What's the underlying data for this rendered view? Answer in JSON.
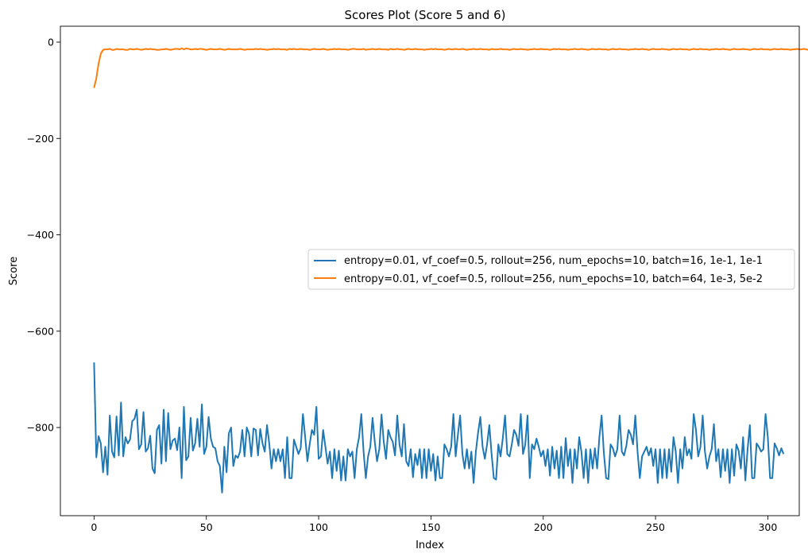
{
  "chart_data": {
    "type": "line",
    "title": "Scores Plot (Score 5 and 6)",
    "xlabel": "Index",
    "ylabel": "Score",
    "xlim": [
      -15,
      314
    ],
    "ylim": [
      -983,
      33
    ],
    "xticks": [
      0,
      50,
      100,
      150,
      200,
      250,
      300
    ],
    "yticks": [
      0,
      -200,
      -400,
      -600,
      -800
    ],
    "grid": false,
    "legend_position": "center-right",
    "series": [
      {
        "name": "entropy=0.01, vf_coef=0.5, rollout=256, num_epochs=10, batch=16, 1e-1, 1e-1",
        "color": "#1f77b4",
        "x_start": 0,
        "x_step": 1,
        "values": [
          -665,
          -862,
          -818,
          -833,
          -893,
          -840,
          -898,
          -775,
          -850,
          -862,
          -777,
          -858,
          -748,
          -860,
          -820,
          -833,
          -825,
          -787,
          -782,
          -763,
          -845,
          -835,
          -768,
          -850,
          -843,
          -817,
          -885,
          -895,
          -805,
          -795,
          -875,
          -763,
          -870,
          -770,
          -845,
          -827,
          -823,
          -847,
          -800,
          -905,
          -757,
          -868,
          -860,
          -780,
          -848,
          -833,
          -782,
          -840,
          -752,
          -855,
          -840,
          -778,
          -823,
          -840,
          -843,
          -870,
          -880,
          -935,
          -840,
          -893,
          -812,
          -800,
          -880,
          -858,
          -863,
          -850,
          -805,
          -860,
          -800,
          -813,
          -860,
          -802,
          -805,
          -858,
          -803,
          -833,
          -850,
          -795,
          -833,
          -885,
          -845,
          -870,
          -845,
          -870,
          -845,
          -905,
          -820,
          -905,
          -905,
          -825,
          -840,
          -855,
          -843,
          -772,
          -820,
          -870,
          -835,
          -805,
          -815,
          -757,
          -865,
          -860,
          -805,
          -840,
          -875,
          -850,
          -905,
          -845,
          -890,
          -848,
          -910,
          -860,
          -910,
          -845,
          -860,
          -850,
          -905,
          -845,
          -820,
          -772,
          -850,
          -905,
          -860,
          -840,
          -780,
          -830,
          -870,
          -845,
          -773,
          -830,
          -865,
          -805,
          -820,
          -830,
          -858,
          -775,
          -835,
          -860,
          -793,
          -870,
          -880,
          -845,
          -903,
          -855,
          -878,
          -845,
          -905,
          -845,
          -905,
          -845,
          -890,
          -855,
          -910,
          -860,
          -905,
          -905,
          -835,
          -845,
          -860,
          -840,
          -772,
          -860,
          -815,
          -775,
          -855,
          -885,
          -845,
          -885,
          -850,
          -915,
          -850,
          -810,
          -778,
          -840,
          -865,
          -835,
          -795,
          -855,
          -905,
          -908,
          -835,
          -860,
          -822,
          -775,
          -855,
          -860,
          -835,
          -805,
          -815,
          -838,
          -772,
          -855,
          -835,
          -775,
          -905,
          -835,
          -845,
          -823,
          -840,
          -860,
          -848,
          -880,
          -845,
          -900,
          -840,
          -885,
          -848,
          -905,
          -840,
          -905,
          -822,
          -880,
          -845,
          -915,
          -845,
          -885,
          -820,
          -850,
          -905,
          -845,
          -915,
          -845,
          -885,
          -843,
          -885,
          -820,
          -775,
          -853,
          -905,
          -907,
          -835,
          -843,
          -860,
          -845,
          -775,
          -850,
          -858,
          -838,
          -805,
          -815,
          -835,
          -775,
          -850,
          -905,
          -860,
          -850,
          -840,
          -858,
          -843,
          -880,
          -845,
          -915,
          -845,
          -905,
          -845,
          -905,
          -845,
          -892,
          -820,
          -850,
          -915,
          -845,
          -885,
          -820,
          -858,
          -845,
          -865,
          -772,
          -805,
          -860,
          -840,
          -775,
          -850,
          -885,
          -860,
          -845,
          -793,
          -870,
          -845,
          -903,
          -845,
          -890,
          -845,
          -915,
          -845,
          -900,
          -835,
          -848,
          -885,
          -820,
          -910,
          -845,
          -795,
          -905,
          -905,
          -833,
          -840,
          -850,
          -845,
          -772,
          -820,
          -905,
          -905,
          -833,
          -843,
          -858,
          -843,
          -855
        ]
      },
      {
        "name": "entropy=0.01, vf_coef=0.5, rollout=256, num_epochs=10, batch=64, 1e-3, 5e-2",
        "color": "#ff7f0e",
        "x_start": 0,
        "x_step": 1,
        "values": [
          -95,
          -75,
          -45,
          -24,
          -16,
          -15,
          -15,
          -14,
          -16,
          -16,
          -14,
          -15,
          -15,
          -15,
          -16,
          -16,
          -14,
          -15,
          -15,
          -14,
          -15,
          -16,
          -15,
          -14,
          -15,
          -14,
          -15,
          -15,
          -16,
          -16,
          -15,
          -15,
          -14,
          -15,
          -16,
          -15,
          -14,
          -14,
          -15,
          -13,
          -15,
          -13,
          -14,
          -15,
          -15,
          -14,
          -15,
          -14,
          -14,
          -15,
          -16,
          -15,
          -14,
          -15,
          -15,
          -15,
          -14,
          -15,
          -16,
          -15,
          -14,
          -15,
          -15,
          -15,
          -15,
          -14,
          -15,
          -16,
          -15,
          -15,
          -15,
          -15,
          -14,
          -15,
          -14,
          -15,
          -15,
          -16,
          -15,
          -15,
          -14,
          -15,
          -14,
          -15,
          -15,
          -15,
          -16,
          -14,
          -15,
          -14,
          -15,
          -15,
          -14,
          -15,
          -15,
          -15,
          -16,
          -15,
          -14,
          -15,
          -15,
          -15,
          -14,
          -15,
          -16,
          -15,
          -15,
          -14,
          -15,
          -14,
          -15,
          -15,
          -15,
          -16,
          -15,
          -14,
          -14,
          -15,
          -15,
          -15,
          -14,
          -16,
          -15,
          -15,
          -14,
          -15,
          -15,
          -14,
          -15,
          -15,
          -15,
          -16,
          -14,
          -15,
          -15,
          -14,
          -15,
          -15,
          -16,
          -15,
          -14,
          -15,
          -15,
          -14,
          -15,
          -15,
          -15,
          -16,
          -15,
          -15,
          -14,
          -15,
          -14,
          -15,
          -15,
          -15,
          -16,
          -15,
          -14,
          -15,
          -15,
          -14,
          -15,
          -15,
          -14,
          -15,
          -16,
          -15,
          -15,
          -14,
          -15,
          -15,
          -14,
          -15,
          -15,
          -15,
          -16,
          -14,
          -15,
          -15,
          -15,
          -14,
          -15,
          -15,
          -15,
          -16,
          -15,
          -14,
          -15,
          -15,
          -14,
          -15,
          -15,
          -16,
          -15,
          -15,
          -14,
          -15,
          -15,
          -14,
          -15,
          -15,
          -15,
          -16,
          -15,
          -14,
          -15,
          -14,
          -15,
          -15,
          -15,
          -16,
          -15,
          -15,
          -14,
          -15,
          -15,
          -14,
          -15,
          -15,
          -16,
          -15,
          -14,
          -15,
          -15,
          -14,
          -15,
          -15,
          -15,
          -16,
          -15,
          -14,
          -15,
          -15,
          -14,
          -15,
          -15,
          -15,
          -16,
          -15,
          -15,
          -14,
          -15,
          -15,
          -14,
          -15,
          -15,
          -16,
          -15,
          -14,
          -15,
          -15,
          -15,
          -14,
          -15,
          -15,
          -16,
          -15,
          -14,
          -15,
          -15,
          -14,
          -15,
          -15,
          -15,
          -16,
          -15,
          -14,
          -15,
          -15,
          -14,
          -15,
          -15,
          -15,
          -16,
          -15,
          -15,
          -14,
          -15,
          -15,
          -14,
          -15,
          -15,
          -16,
          -15,
          -14,
          -15,
          -15,
          -15,
          -14,
          -15,
          -15,
          -16,
          -15,
          -14,
          -15,
          -15,
          -14,
          -15,
          -15,
          -15,
          -16,
          -15,
          -14,
          -15,
          -15,
          -14,
          -15,
          -15,
          -15,
          -16,
          -15,
          -15,
          -14,
          -15,
          -15,
          -14,
          -15,
          -16,
          -15,
          -14,
          -15,
          -13
        ]
      }
    ]
  }
}
